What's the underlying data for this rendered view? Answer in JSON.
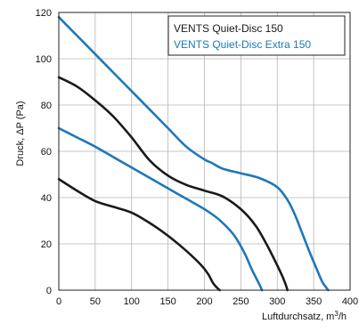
{
  "chart_data": {
    "type": "line",
    "xlabel_main": "Luftdurchsatz, m",
    "xlabel_sup": "3",
    "xlabel_end": "/h",
    "ylabel": "Druck, ΔP (Pa)",
    "xlim": [
      0,
      400
    ],
    "ylim": [
      0,
      120
    ],
    "xticks": [
      0,
      50,
      100,
      150,
      200,
      250,
      300,
      350,
      400
    ],
    "yticks": [
      0,
      20,
      40,
      60,
      80,
      100,
      120
    ],
    "grid": true,
    "legend_position": "top-right",
    "series": [
      {
        "name": "VENTS Quiet-Disc 150",
        "color": "#1a1a1a",
        "curves": [
          {
            "x": [
              0,
              25,
              50,
              75,
              100,
              125,
              150,
              175,
              195,
              205,
              212,
              218,
              221
            ],
            "y": [
              48,
              43,
              38.5,
              36,
              33.5,
              29,
              23.5,
              17,
              11,
              7,
              3,
              0.8,
              0
            ]
          },
          {
            "x": [
              0,
              25,
              50,
              75,
              100,
              125,
              150,
              175,
              200,
              225,
              250,
              270,
              285,
              298,
              307,
              312,
              314
            ],
            "y": [
              92,
              88,
              82,
              75,
              66,
              56,
              49.5,
              45.5,
              43,
              40.5,
              35,
              28,
              20,
              12,
              6,
              2,
              0
            ]
          }
        ]
      },
      {
        "name": "VENTS Quiet-Disc Extra 150",
        "color": "#1e78b8",
        "curves": [
          {
            "x": [
              0,
              25,
              50,
              75,
              100,
              125,
              150,
              175,
              200,
              220,
              240,
              255,
              265,
              273,
              277,
              279
            ],
            "y": [
              70,
              66,
              62,
              57.5,
              53,
              48.5,
              44,
              39.5,
              35,
              30.5,
              24,
              16,
              9,
              4,
              1.5,
              0
            ]
          },
          {
            "x": [
              0,
              25,
              50,
              75,
              100,
              125,
              150,
              175,
              200,
              210,
              225,
              250,
              275,
              300,
              315,
              325,
              335,
              345,
              355,
              362,
              368,
              370
            ],
            "y": [
              118,
              110,
              102,
              94,
              86,
              78,
              70,
              62,
              56.5,
              55,
              52.5,
              50.5,
              48.5,
              44.5,
              38.5,
              32,
              24,
              16,
              8.5,
              3.5,
              0.8,
              0
            ]
          }
        ]
      }
    ]
  }
}
